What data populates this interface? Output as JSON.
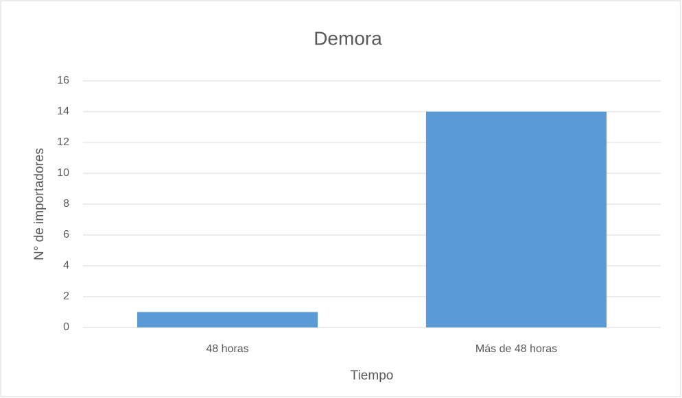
{
  "chart_data": {
    "type": "bar",
    "title": "Demora",
    "x_label": "Tiempo",
    "y_label": "N° de importadores",
    "categories": [
      "48 horas",
      "Más de 48 horas"
    ],
    "values": [
      1,
      14
    ],
    "color": "#5b9bd5",
    "ylim": [
      0,
      16
    ],
    "yticks": [
      0,
      2,
      4,
      6,
      8,
      10,
      12,
      14,
      16
    ],
    "grid": true
  }
}
